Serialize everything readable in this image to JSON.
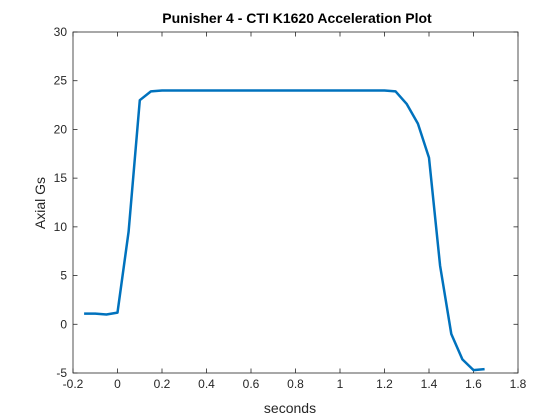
{
  "chart_data": {
    "type": "line",
    "title": "Punisher 4 -  CTI K1620 Acceleration Plot",
    "xlabel": "seconds",
    "ylabel": "Axial Gs",
    "xlim": [
      -0.2,
      1.8
    ],
    "ylim": [
      -5,
      30
    ],
    "xticks": [
      -0.2,
      0,
      0.2,
      0.4,
      0.6,
      0.8,
      1,
      1.2,
      1.4,
      1.6,
      1.8
    ],
    "xtick_labels": [
      "-0.2",
      "0",
      "0.2",
      "0.4",
      "0.6",
      "0.8",
      "1",
      "1.2",
      "1.4",
      "1.6",
      "1.8"
    ],
    "yticks": [
      -5,
      0,
      5,
      10,
      15,
      20,
      25,
      30
    ],
    "ytick_labels": [
      "-5",
      "0",
      "5",
      "10",
      "15",
      "20",
      "25",
      "30"
    ],
    "grid": false,
    "box": true,
    "line_color": "#0072BD",
    "series": [
      {
        "x": [
          -0.15,
          -0.1,
          -0.05,
          0,
          0.05,
          0.1,
          0.15,
          0.2,
          0.25,
          0.3,
          0.4,
          0.5,
          0.6,
          0.7,
          0.8,
          0.9,
          1.0,
          1.1,
          1.2,
          1.25,
          1.3,
          1.35,
          1.4,
          1.45,
          1.5,
          1.55,
          1.6,
          1.65
        ],
        "y": [
          1.1,
          1.1,
          1.0,
          1.2,
          9.5,
          23.0,
          23.9,
          24.0,
          24.0,
          24.0,
          24.0,
          24.0,
          24.0,
          24.0,
          24.0,
          24.0,
          24.0,
          24.0,
          24.0,
          23.9,
          22.6,
          20.6,
          17.1,
          6.0,
          -1.0,
          -3.6,
          -4.7,
          -4.6
        ]
      }
    ]
  }
}
